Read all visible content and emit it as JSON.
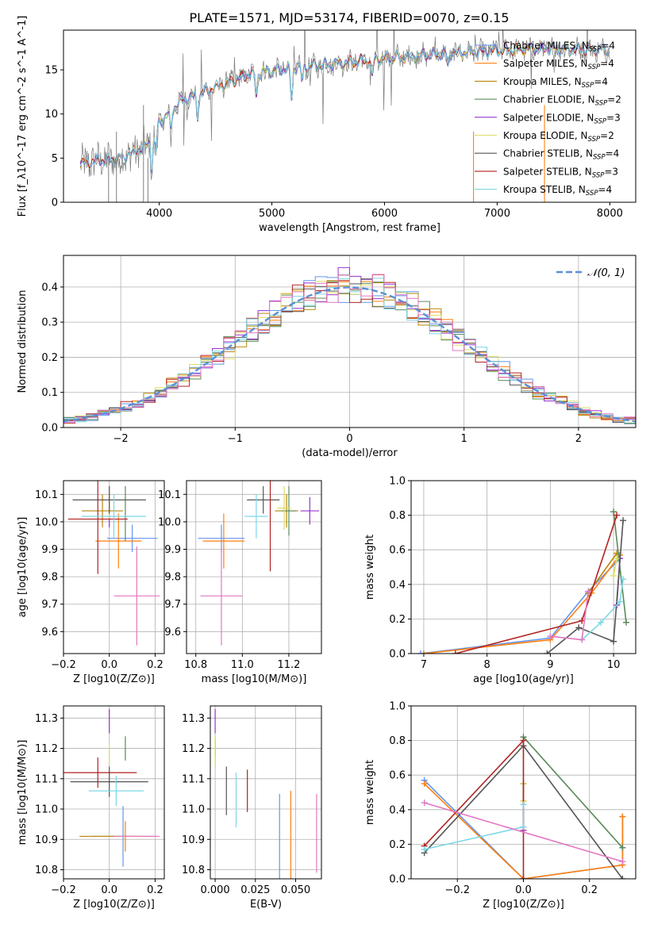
{
  "title": "PLATE=1571, MJD=53174, FIBERID=0070, z=0.15",
  "colors": {
    "ChMILES": "#6495ed",
    "SaMILES": "#ff7f0e",
    "KrMILES": "#b8860b",
    "ChELODIE": "#5a8a5a",
    "SaELODIE": "#9932cc",
    "KrELODIE": "#dddd66",
    "ChSTELIB": "#555555",
    "SaSTELIB": "#b22222",
    "KrSTELIB": "#7dd8e6",
    "pink": "#e377c2",
    "normal": "#5b8fd6"
  },
  "chart_data": [
    {
      "type": "line",
      "name": "spectrum",
      "xlabel": "wavelength [Angstrom, rest frame]",
      "ylabel": "Flux [f_λ10^-17 erg cm^-2 s^-1 A^-1]",
      "xlim": [
        3150,
        8230
      ],
      "ylim": [
        0,
        19.5
      ],
      "xticks": [
        4000,
        5000,
        6000,
        7000,
        8000
      ],
      "yticks": [
        0,
        5,
        10,
        15
      ],
      "grid": false,
      "legend_position": "top-right",
      "legend": [
        {
          "label": "Chabrier MILES, N",
          "sub": "SSP",
          "tail": "=4",
          "color_key": "ChMILES"
        },
        {
          "label": "Salpeter MILES, N",
          "sub": "SSP",
          "tail": "=4",
          "color_key": "SaMILES"
        },
        {
          "label": "Kroupa MILES, N",
          "sub": "SSP",
          "tail": "=4",
          "color_key": "KrMILES"
        },
        {
          "label": "Chabrier ELODIE, N",
          "sub": "SSP",
          "tail": "=2",
          "color_key": "ChELODIE"
        },
        {
          "label": "Salpeter ELODIE, N",
          "sub": "SSP",
          "tail": "=3",
          "color_key": "SaELODIE"
        },
        {
          "label": "Kroupa ELODIE, N",
          "sub": "SSP",
          "tail": "=2",
          "color_key": "KrELODIE"
        },
        {
          "label": "Chabrier STELIB, N",
          "sub": "SSP",
          "tail": "=4",
          "color_key": "ChSTELIB"
        },
        {
          "label": "Salpeter STELIB, N",
          "sub": "SSP",
          "tail": "=3",
          "color_key": "SaSTELIB"
        },
        {
          "label": "Kroupa STELIB, N",
          "sub": "SSP",
          "tail": "=4",
          "color_key": "KrSTELIB"
        }
      ],
      "x_range": [
        3300,
        8000
      ],
      "continuum": [
        [
          3300,
          4.4
        ],
        [
          3450,
          4.7
        ],
        [
          3600,
          4.8
        ],
        [
          3700,
          5.2
        ],
        [
          3800,
          5.8
        ],
        [
          3900,
          6.5
        ],
        [
          4000,
          9.0
        ],
        [
          4200,
          11.5
        ],
        [
          4400,
          12.5
        ],
        [
          4600,
          13.5
        ],
        [
          4800,
          14.5
        ],
        [
          5000,
          14.9
        ],
        [
          5200,
          15.2
        ],
        [
          5500,
          15.6
        ],
        [
          5800,
          16.0
        ],
        [
          6000,
          16.3
        ],
        [
          6300,
          16.6
        ],
        [
          6600,
          16.9
        ],
        [
          7000,
          17.2
        ],
        [
          7400,
          17.4
        ],
        [
          8000,
          17.3
        ]
      ]
    },
    {
      "type": "step",
      "name": "residuals",
      "xlabel": "(data-model)/error",
      "ylabel": "Normed distribution",
      "xlim": [
        -2.5,
        2.5
      ],
      "ylim": [
        0,
        0.49
      ],
      "xticks": [
        -2,
        -1,
        0,
        1,
        2
      ],
      "yticks": [
        0.0,
        0.1,
        0.2,
        0.3,
        0.4
      ],
      "grid": true,
      "legend_position": "top-right",
      "bin_width": 0.1,
      "series": [
        {
          "color_key": "ChMILES"
        },
        {
          "color_key": "SaMILES"
        },
        {
          "color_key": "KrMILES"
        },
        {
          "color_key": "ChELODIE"
        },
        {
          "color_key": "SaELODIE"
        },
        {
          "color_key": "KrELODIE"
        },
        {
          "color_key": "ChSTELIB"
        },
        {
          "color_key": "SaSTELIB"
        },
        {
          "color_key": "KrSTELIB"
        },
        {
          "color_key": "pink"
        }
      ],
      "overlay": {
        "label": "𝒩(0, 1)",
        "color_key": "normal",
        "mean": 0,
        "sigma": 1
      }
    },
    {
      "type": "errorbar",
      "name": "age_vs_Z",
      "xlabel": "Z [log10(Z/Z⊙)]",
      "ylabel": "age  [log10(age/yr)]",
      "xlim": [
        -0.2,
        0.24
      ],
      "ylim": [
        9.52,
        10.15
      ],
      "xticks": [
        -0.2,
        0.0,
        0.2
      ],
      "yticks": [
        9.6,
        9.7,
        9.8,
        9.9,
        10.0,
        10.1
      ],
      "grid": true,
      "points": [
        {
          "x": 0.1,
          "xerr": 0.11,
          "y": 9.94,
          "yerr": 0.05,
          "c": "ChMILES"
        },
        {
          "x": 0.04,
          "xerr": 0.1,
          "y": 9.93,
          "yerr": 0.1,
          "c": "SaMILES"
        },
        {
          "x": -0.03,
          "xerr": 0.09,
          "y": 10.04,
          "yerr": 0.06,
          "c": "KrMILES"
        },
        {
          "x": 0.07,
          "xerr": 0.0,
          "y": 10.03,
          "yerr": 0.1,
          "c": "ChELODIE"
        },
        {
          "x": 0.0,
          "xerr": 0.0,
          "y": 10.04,
          "yerr": 0.06,
          "c": "SaELODIE"
        },
        {
          "x": 0.0,
          "xerr": 0.0,
          "y": 10.06,
          "yerr": 0.05,
          "c": "KrELODIE"
        },
        {
          "x": 0.0,
          "xerr": 0.16,
          "y": 10.08,
          "yerr": 0.05,
          "c": "ChSTELIB"
        },
        {
          "x": -0.05,
          "xerr": 0.13,
          "y": 10.01,
          "yerr": 0.2,
          "c": "SaSTELIB"
        },
        {
          "x": 0.02,
          "xerr": 0.14,
          "y": 10.02,
          "yerr": 0.08,
          "c": "KrSTELIB"
        },
        {
          "x": 0.12,
          "xerr": 0.1,
          "y": 9.73,
          "yerr": 0.18,
          "c": "pink"
        }
      ]
    },
    {
      "type": "errorbar",
      "name": "age_vs_mass",
      "xlabel": "mass [log10(M/M⊙)]",
      "ylabel": "",
      "xlim": [
        10.76,
        11.34
      ],
      "ylim": [
        9.52,
        10.15
      ],
      "xticks": [
        10.8,
        11.0,
        11.2
      ],
      "yticks": [
        9.6,
        9.7,
        9.8,
        9.9,
        10.0,
        10.1
      ],
      "grid": true,
      "points": [
        {
          "x": 10.91,
          "xerr": 0.1,
          "y": 9.94,
          "yerr": 0.05,
          "c": "ChMILES"
        },
        {
          "x": 10.92,
          "xerr": 0.09,
          "y": 9.93,
          "yerr": 0.1,
          "c": "SaMILES"
        },
        {
          "x": 11.19,
          "xerr": 0.05,
          "y": 10.04,
          "yerr": 0.06,
          "c": "KrMILES"
        },
        {
          "x": 11.2,
          "xerr": 0.03,
          "y": 10.04,
          "yerr": 0.09,
          "c": "ChELODIE"
        },
        {
          "x": 11.29,
          "xerr": 0.04,
          "y": 10.04,
          "yerr": 0.05,
          "c": "SaELODIE"
        },
        {
          "x": 11.18,
          "xerr": 0.03,
          "y": 10.05,
          "yerr": 0.08,
          "c": "KrELODIE"
        },
        {
          "x": 11.09,
          "xerr": 0.07,
          "y": 10.08,
          "yerr": 0.05,
          "c": "ChSTELIB"
        },
        {
          "x": 11.12,
          "xerr": 0.0,
          "y": 10.02,
          "yerr": 0.2,
          "c": "SaSTELIB"
        },
        {
          "x": 11.06,
          "xerr": 0.05,
          "y": 10.02,
          "yerr": 0.08,
          "c": "KrSTELIB"
        },
        {
          "x": 10.91,
          "xerr": 0.09,
          "y": 9.73,
          "yerr": 0.18,
          "c": "pink"
        }
      ]
    },
    {
      "type": "line",
      "name": "weight_vs_age",
      "xlabel": "age  [log10(age/yr)]",
      "ylabel": "mass weight",
      "xlim": [
        6.8,
        10.35
      ],
      "ylim": [
        0,
        1.0
      ],
      "xticks": [
        7,
        8,
        9,
        10
      ],
      "yticks": [
        0.0,
        0.2,
        0.4,
        0.6,
        0.8,
        1.0
      ],
      "grid": true,
      "series": [
        {
          "c": "ChMILES",
          "points": [
            [
              6.95,
              0.0
            ],
            [
              9.0,
              0.09
            ],
            [
              9.6,
              0.36
            ],
            [
              10.1,
              0.55
            ]
          ]
        },
        {
          "c": "SaMILES",
          "points": [
            [
              7.0,
              0.0
            ],
            [
              9.0,
              0.08
            ],
            [
              9.65,
              0.35
            ],
            [
              10.1,
              0.57
            ]
          ]
        },
        {
          "c": "KrMILES",
          "points": [
            [
              9.6,
              0.35
            ],
            [
              10.05,
              0.58
            ]
          ]
        },
        {
          "c": "ChELODIE",
          "points": [
            [
              10.0,
              0.82
            ],
            [
              10.2,
              0.18
            ]
          ]
        },
        {
          "c": "SaELODIE",
          "points": [
            [
              10.05,
              0.28
            ],
            [
              10.1,
              0.55
            ]
          ]
        },
        {
          "c": "KrELODIE",
          "points": [
            [
              10.0,
              0.45
            ],
            [
              10.05,
              0.55
            ]
          ]
        },
        {
          "c": "ChSTELIB",
          "points": [
            [
              8.95,
              0.0
            ],
            [
              9.45,
              0.15
            ],
            [
              10.0,
              0.07
            ],
            [
              10.15,
              0.77
            ]
          ]
        },
        {
          "c": "SaSTELIB",
          "points": [
            [
              7.5,
              0.0
            ],
            [
              9.5,
              0.19
            ],
            [
              10.05,
              0.8
            ]
          ]
        },
        {
          "c": "KrSTELIB",
          "points": [
            [
              9.5,
              0.08
            ],
            [
              9.8,
              0.18
            ],
            [
              10.1,
              0.3
            ],
            [
              10.15,
              0.43
            ]
          ]
        },
        {
          "c": "pink",
          "points": [
            [
              9.0,
              0.1
            ],
            [
              9.5,
              0.08
            ],
            [
              9.6,
              0.36
            ]
          ]
        }
      ]
    },
    {
      "type": "errorbar",
      "name": "mass_vs_Z",
      "xlabel": "Z [log10(Z/Z⊙)]",
      "ylabel": "mass [log10(M/M⊙)]",
      "xlim": [
        -0.2,
        0.24
      ],
      "ylim": [
        10.77,
        11.34
      ],
      "xticks": [
        -0.2,
        0.0,
        0.2
      ],
      "yticks": [
        10.8,
        10.9,
        11.0,
        11.1,
        11.2,
        11.3
      ],
      "grid": true,
      "points": [
        {
          "x": 0.06,
          "xerr": 0.14,
          "y": 10.91,
          "yerr": 0.1,
          "c": "ChMILES"
        },
        {
          "x": 0.07,
          "xerr": 0.14,
          "y": 10.91,
          "yerr": 0.05,
          "c": "SaMILES"
        },
        {
          "x": 0.0,
          "xerr": 0.13,
          "y": 10.91,
          "yerr": 0.0,
          "c": "KrMILES"
        },
        {
          "x": 0.07,
          "xerr": 0.0,
          "y": 11.2,
          "yerr": 0.04,
          "c": "ChELODIE"
        },
        {
          "x": 0.0,
          "xerr": 0.0,
          "y": 11.29,
          "yerr": 0.04,
          "c": "SaELODIE"
        },
        {
          "x": 0.0,
          "xerr": 0.0,
          "y": 11.18,
          "yerr": 0.03,
          "c": "KrELODIE"
        },
        {
          "x": 0.0,
          "xerr": 0.17,
          "y": 11.09,
          "yerr": 0.05,
          "c": "ChSTELIB"
        },
        {
          "x": -0.05,
          "xerr": 0.17,
          "y": 11.12,
          "yerr": 0.05,
          "c": "SaSTELIB"
        },
        {
          "x": 0.03,
          "xerr": 0.12,
          "y": 11.06,
          "yerr": 0.05,
          "c": "KrSTELIB"
        },
        {
          "x": 0.12,
          "xerr": 0.1,
          "y": 10.91,
          "yerr": 0.0,
          "c": "pink"
        }
      ]
    },
    {
      "type": "errorbar",
      "name": "mass_vs_ebv",
      "xlabel": "E(B-V)",
      "ylabel": "",
      "xlim": [
        -0.003,
        0.066
      ],
      "ylim": [
        10.77,
        11.34
      ],
      "xticks": [
        0.0,
        0.025,
        0.05
      ],
      "yticks": [
        10.8,
        10.9,
        11.0,
        11.1,
        11.2,
        11.3
      ],
      "grid": true,
      "points": [
        {
          "x": 0.04,
          "y": 10.91,
          "yerr": 0.14,
          "c": "ChMILES"
        },
        {
          "x": 0.047,
          "y": 10.91,
          "yerr": 0.15,
          "c": "SaMILES"
        },
        {
          "x": 0.0,
          "y": 11.19,
          "yerr": 0.05,
          "c": "KrMILES"
        },
        {
          "x": 0.0,
          "y": 11.2,
          "yerr": 0.03,
          "c": "ChELODIE"
        },
        {
          "x": 0.0,
          "y": 11.29,
          "yerr": 0.04,
          "c": "SaELODIE"
        },
        {
          "x": 0.0,
          "y": 11.19,
          "yerr": 0.05,
          "c": "KrELODIE"
        },
        {
          "x": 0.007,
          "y": 11.06,
          "yerr": 0.08,
          "c": "ChSTELIB"
        },
        {
          "x": 0.02,
          "y": 11.06,
          "yerr": 0.07,
          "c": "SaSTELIB"
        },
        {
          "x": 0.013,
          "y": 11.03,
          "yerr": 0.09,
          "c": "KrSTELIB"
        },
        {
          "x": 0.063,
          "y": 10.92,
          "yerr": 0.13,
          "c": "pink"
        }
      ]
    },
    {
      "type": "line",
      "name": "weight_vs_Z",
      "xlabel": "Z [log10(Z/Z⊙)]",
      "ylabel": "mass weight",
      "xlim": [
        -0.34,
        0.34
      ],
      "ylim": [
        0,
        1.0
      ],
      "xticks": [
        -0.2,
        0.0,
        0.2
      ],
      "yticks": [
        0.0,
        0.2,
        0.4,
        0.6,
        0.8,
        1.0
      ],
      "grid": true,
      "series": [
        {
          "c": "ChMILES",
          "points": [
            [
              -0.3,
              0.57
            ],
            [
              0.0,
              0.0
            ],
            [
              0.3,
              0.08
            ],
            [
              0.3,
              0.36
            ]
          ]
        },
        {
          "c": "SaMILES",
          "points": [
            [
              -0.3,
              0.55
            ],
            [
              0.0,
              0.0
            ],
            [
              0.3,
              0.08
            ],
            [
              0.3,
              0.36
            ]
          ]
        },
        {
          "c": "KrMILES",
          "points": [
            [
              0.0,
              0.55
            ],
            [
              0.0,
              0.45
            ]
          ]
        },
        {
          "c": "ChELODIE",
          "points": [
            [
              0.0,
              0.82
            ],
            [
              0.3,
              0.18
            ]
          ]
        },
        {
          "c": "SaELODIE",
          "points": [
            [
              0.0,
              0.28
            ],
            [
              0.0,
              0.55
            ]
          ]
        },
        {
          "c": "KrELODIE",
          "points": [
            [
              0.0,
              0.45
            ],
            [
              0.0,
              0.55
            ]
          ]
        },
        {
          "c": "ChSTELIB",
          "points": [
            [
              -0.3,
              0.15
            ],
            [
              0.0,
              0.77
            ],
            [
              0.3,
              0.0
            ]
          ]
        },
        {
          "c": "SaSTELIB",
          "points": [
            [
              -0.3,
              0.19
            ],
            [
              0.0,
              0.8
            ],
            [
              0.0,
              0.0
            ]
          ]
        },
        {
          "c": "KrSTELIB",
          "points": [
            [
              -0.3,
              0.17
            ],
            [
              0.0,
              0.3
            ],
            [
              0.0,
              0.43
            ]
          ]
        },
        {
          "c": "pink",
          "points": [
            [
              -0.3,
              0.44
            ],
            [
              0.3,
              0.1
            ]
          ]
        }
      ]
    }
  ]
}
